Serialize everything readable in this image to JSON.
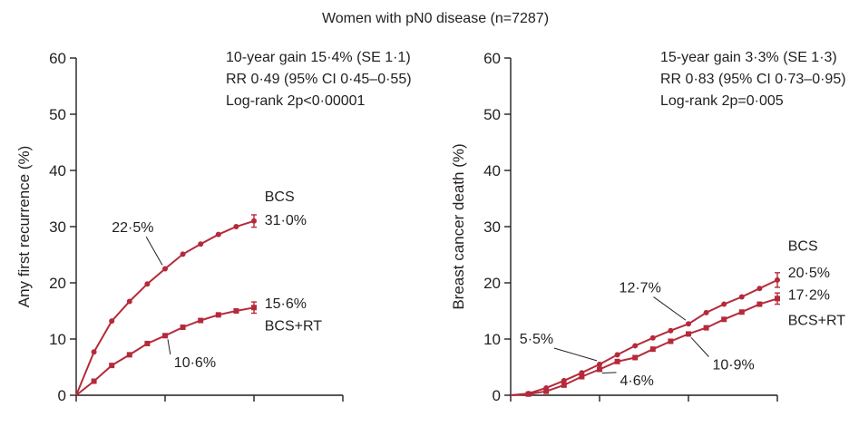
{
  "figure_title": "Women with pN0 disease (n=7287)",
  "colors": {
    "series": "#b52a3a",
    "axis": "#231f20"
  },
  "chart_data": [
    {
      "type": "line",
      "title": "",
      "ylabel": "Any first recurrence (%)",
      "xlabel": "",
      "ylim": [
        0,
        60
      ],
      "yticks": [
        0,
        10,
        20,
        30,
        40,
        50,
        60
      ],
      "xlim": [
        0,
        30
      ],
      "xticks": [
        0,
        10,
        20,
        30
      ],
      "grid": false,
      "stats": [
        "10-year gain 15·4% (SE 1·1)",
        "RR 0·49 (95% CI 0·45–0·55)",
        "Log-rank 2p<0·00001"
      ],
      "series": [
        {
          "name": "BCS",
          "marker": "circle",
          "x": [
            0,
            2,
            4,
            6,
            8,
            10,
            12,
            14,
            16,
            18,
            20
          ],
          "y": [
            0,
            7.7,
            13.2,
            16.7,
            19.8,
            22.5,
            25.1,
            26.9,
            28.6,
            30.0,
            31.0
          ],
          "error_end": 1.1
        },
        {
          "name": "BCS+RT",
          "marker": "square",
          "x": [
            0,
            2,
            4,
            6,
            8,
            10,
            12,
            14,
            16,
            18,
            20
          ],
          "y": [
            0,
            2.5,
            5.3,
            7.2,
            9.2,
            10.6,
            12.1,
            13.3,
            14.3,
            15.0,
            15.6
          ],
          "error_end": 1.0
        }
      ],
      "annotations": [
        {
          "text": "22·5%",
          "x": 10,
          "y": 22.5,
          "label_x": 4,
          "label_y": 29
        },
        {
          "text": "10·6%",
          "x": 10,
          "y": 10.6,
          "label_x": 11,
          "label_y": 5
        },
        {
          "text": "BCS",
          "x": 20,
          "y": 31.0,
          "label_x": 21.2,
          "label_y": 34.5
        },
        {
          "text": "31·0%",
          "x": 20,
          "y": 31.0,
          "label_x": 21.2,
          "label_y": 30.3
        },
        {
          "text": "15·6%",
          "x": 20,
          "y": 15.6,
          "label_x": 21.2,
          "label_y": 15.5
        },
        {
          "text": "BCS+RT",
          "x": 20,
          "y": 15.6,
          "label_x": 21.2,
          "label_y": 11.5
        }
      ]
    },
    {
      "type": "line",
      "title": "",
      "ylabel": "Breast cancer death (%)",
      "xlabel": "",
      "ylim": [
        0,
        60
      ],
      "yticks": [
        0,
        10,
        20,
        30,
        40,
        50,
        60
      ],
      "xlim": [
        0,
        30
      ],
      "xticks": [
        0,
        10,
        20,
        30
      ],
      "grid": false,
      "stats": [
        "15-year gain 3·3% (SE 1·3)",
        "RR 0·83 (95% CI 0·73–0·95)",
        "Log-rank 2p=0·005"
      ],
      "series": [
        {
          "name": "BCS",
          "marker": "circle",
          "x": [
            0,
            2,
            4,
            6,
            8,
            10,
            12,
            14,
            16,
            18,
            20,
            22,
            24,
            26,
            28,
            30
          ],
          "y": [
            0,
            0.3,
            1.3,
            2.6,
            4.0,
            5.5,
            7.2,
            8.8,
            10.2,
            11.5,
            12.7,
            14.7,
            16.2,
            17.5,
            19.0,
            20.5
          ],
          "error_end": 1.3
        },
        {
          "name": "BCS+RT",
          "marker": "square",
          "x": [
            0,
            2,
            4,
            6,
            8,
            10,
            12,
            14,
            16,
            18,
            20,
            22,
            24,
            26,
            28,
            30
          ],
          "y": [
            0,
            0.2,
            0.7,
            1.8,
            3.3,
            4.6,
            6.0,
            6.7,
            8.2,
            9.6,
            10.9,
            12.0,
            13.5,
            14.8,
            16.2,
            17.2
          ],
          "error_end": 1.0
        }
      ],
      "annotations": [
        {
          "text": "5·5%",
          "x": 10,
          "y": 5.5,
          "label_x": 1,
          "label_y": 9.2
        },
        {
          "text": "4·6%",
          "x": 10,
          "y": 4.6,
          "label_x": 12.3,
          "label_y": 1.8
        },
        {
          "text": "12·7%",
          "x": 20,
          "y": 12.7,
          "label_x": 12.2,
          "label_y": 18.3
        },
        {
          "text": "10·9%",
          "x": 20,
          "y": 10.9,
          "label_x": 22.7,
          "label_y": 4.6
        },
        {
          "text": "BCS",
          "x": 30,
          "y": 20.5,
          "label_x": 31.2,
          "label_y": 25.7
        },
        {
          "text": "20·5%",
          "x": 30,
          "y": 20.5,
          "label_x": 31.2,
          "label_y": 21.0
        },
        {
          "text": "17·2%",
          "x": 30,
          "y": 17.2,
          "label_x": 31.2,
          "label_y": 17.0
        },
        {
          "text": "BCS+RT",
          "x": 30,
          "y": 17.2,
          "label_x": 31.2,
          "label_y": 12.5
        }
      ]
    }
  ]
}
